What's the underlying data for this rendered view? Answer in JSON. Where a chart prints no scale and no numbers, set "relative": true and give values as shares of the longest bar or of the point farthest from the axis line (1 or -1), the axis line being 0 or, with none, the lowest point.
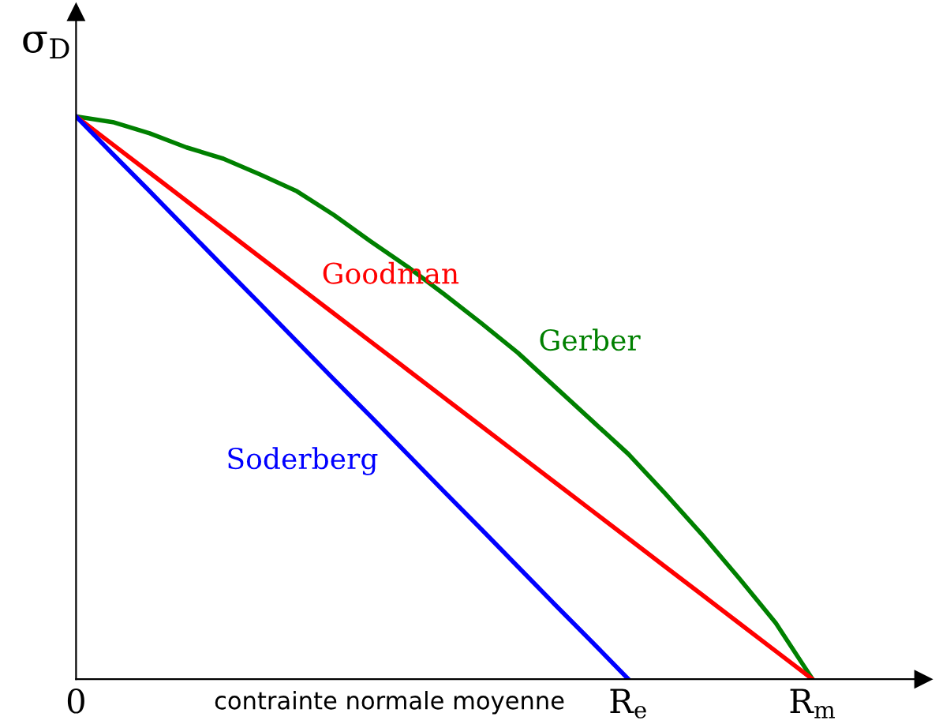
{
  "chart_data": {
    "type": "line",
    "relative": true,
    "ylabel": "σ$_{D}$",
    "xlabel": "contrainte normale moyenne",
    "categories": [
      "0",
      null,
      null,
      null,
      null,
      null,
      null,
      null,
      null,
      null,
      null,
      null,
      null,
      null,
      null,
      "R$_{e}$",
      null,
      null,
      null,
      null,
      "R$_{m}$"
    ],
    "tick_labels": "x",
    "marker": "none",
    "line_style": "solid",
    "series": [
      {
        "name": "Gerber",
        "color": "#008000",
        "values": [
          1.0,
          0.99,
          0.97,
          0.945,
          0.925,
          0.897,
          0.867,
          0.825,
          0.778,
          0.733,
          0.684,
          0.633,
          0.58,
          0.52,
          0.46,
          0.4,
          0.33,
          0.257,
          0.18,
          0.1,
          0
        ]
      },
      {
        "name": "Goodman",
        "color": "#ff0000",
        "values": [
          1.0,
          0.95,
          0.9,
          0.85,
          0.8,
          0.75,
          0.7,
          0.65,
          0.6,
          0.55,
          0.5,
          0.45,
          0.4,
          0.35,
          0.3,
          0.25,
          0.2,
          0.15,
          0.1,
          0.05,
          0
        ]
      },
      {
        "name": "Soderberg",
        "color": "#0000ff",
        "values": [
          1.0,
          0.933,
          0.867,
          0.8,
          0.733,
          0.667,
          0.6,
          0.533,
          0.467,
          0.4,
          0.333,
          0.267,
          0.2,
          0.133,
          0.067,
          0,
          null,
          null,
          null,
          null,
          null
        ]
      }
    ]
  }
}
